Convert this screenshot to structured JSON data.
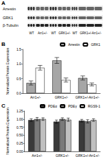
{
  "blot": {
    "label": "A",
    "rows": [
      "Arrestin",
      "GRK1",
      "β-Tubulin"
    ],
    "lanes": [
      "WT",
      "Arr1+/-",
      "WT",
      "GRK1+/-",
      "WT",
      "GRK1+/-Arr1+/-"
    ]
  },
  "chart_data": [
    {
      "type": "bar",
      "title": "B",
      "ylabel": "Normalized Protein Expression",
      "categories": [
        "Arr1+/-",
        "GRK1+/-",
        "GRK1+/-Arr1+/-"
      ],
      "series": [
        {
          "name": "Arrestin",
          "color": "#a6a6a6",
          "values": [
            0.35,
            1.12,
            0.52
          ],
          "errors": [
            0.07,
            0.1,
            0.07
          ]
        },
        {
          "name": "GRK1",
          "color": "#ffffff",
          "values": [
            0.87,
            0.45,
            0.3
          ],
          "errors": [
            0.08,
            0.07,
            0.05
          ]
        }
      ],
      "ylim": [
        0,
        1.5
      ],
      "yticks": [
        {
          "value": 0,
          "label": "0.0"
        },
        {
          "value": 0.5,
          "label": "0.5"
        },
        {
          "value": 1,
          "label": "1.0"
        },
        {
          "value": 1.5,
          "label": "1.5"
        }
      ],
      "legend": "upper right"
    },
    {
      "type": "bar",
      "title": "C",
      "ylabel": "Normalized Protein Expression",
      "categories": [
        "Arr1+/-",
        "GRK1+/-",
        "GRK1+/-Arr1+/-"
      ],
      "series": [
        {
          "name": "PDEα",
          "color": "#3a3a3a",
          "values": [
            0.97,
            0.92,
            0.95
          ],
          "errors": [
            0.04,
            0.05,
            0.04
          ]
        },
        {
          "name": "PDEγ",
          "color": "#7a7a7a",
          "values": [
            1.0,
            1.0,
            0.93
          ],
          "errors": [
            0.05,
            0.04,
            0.05
          ]
        },
        {
          "name": "RGS9-1",
          "color": "#c0c0c0",
          "values": [
            1.0,
            0.98,
            0.97
          ],
          "errors": [
            0.04,
            0.05,
            0.04
          ]
        }
      ],
      "ylim": [
        0,
        1.25
      ],
      "yticks": [
        {
          "value": 0,
          "label": "0.00"
        },
        {
          "value": 0.25,
          "label": "0.25"
        },
        {
          "value": 0.5,
          "label": "0.50"
        },
        {
          "value": 0.75,
          "label": "0.75"
        },
        {
          "value": 1,
          "label": "1.00"
        },
        {
          "value": 1.25,
          "label": "1.25"
        }
      ],
      "legend": "upper right"
    }
  ]
}
